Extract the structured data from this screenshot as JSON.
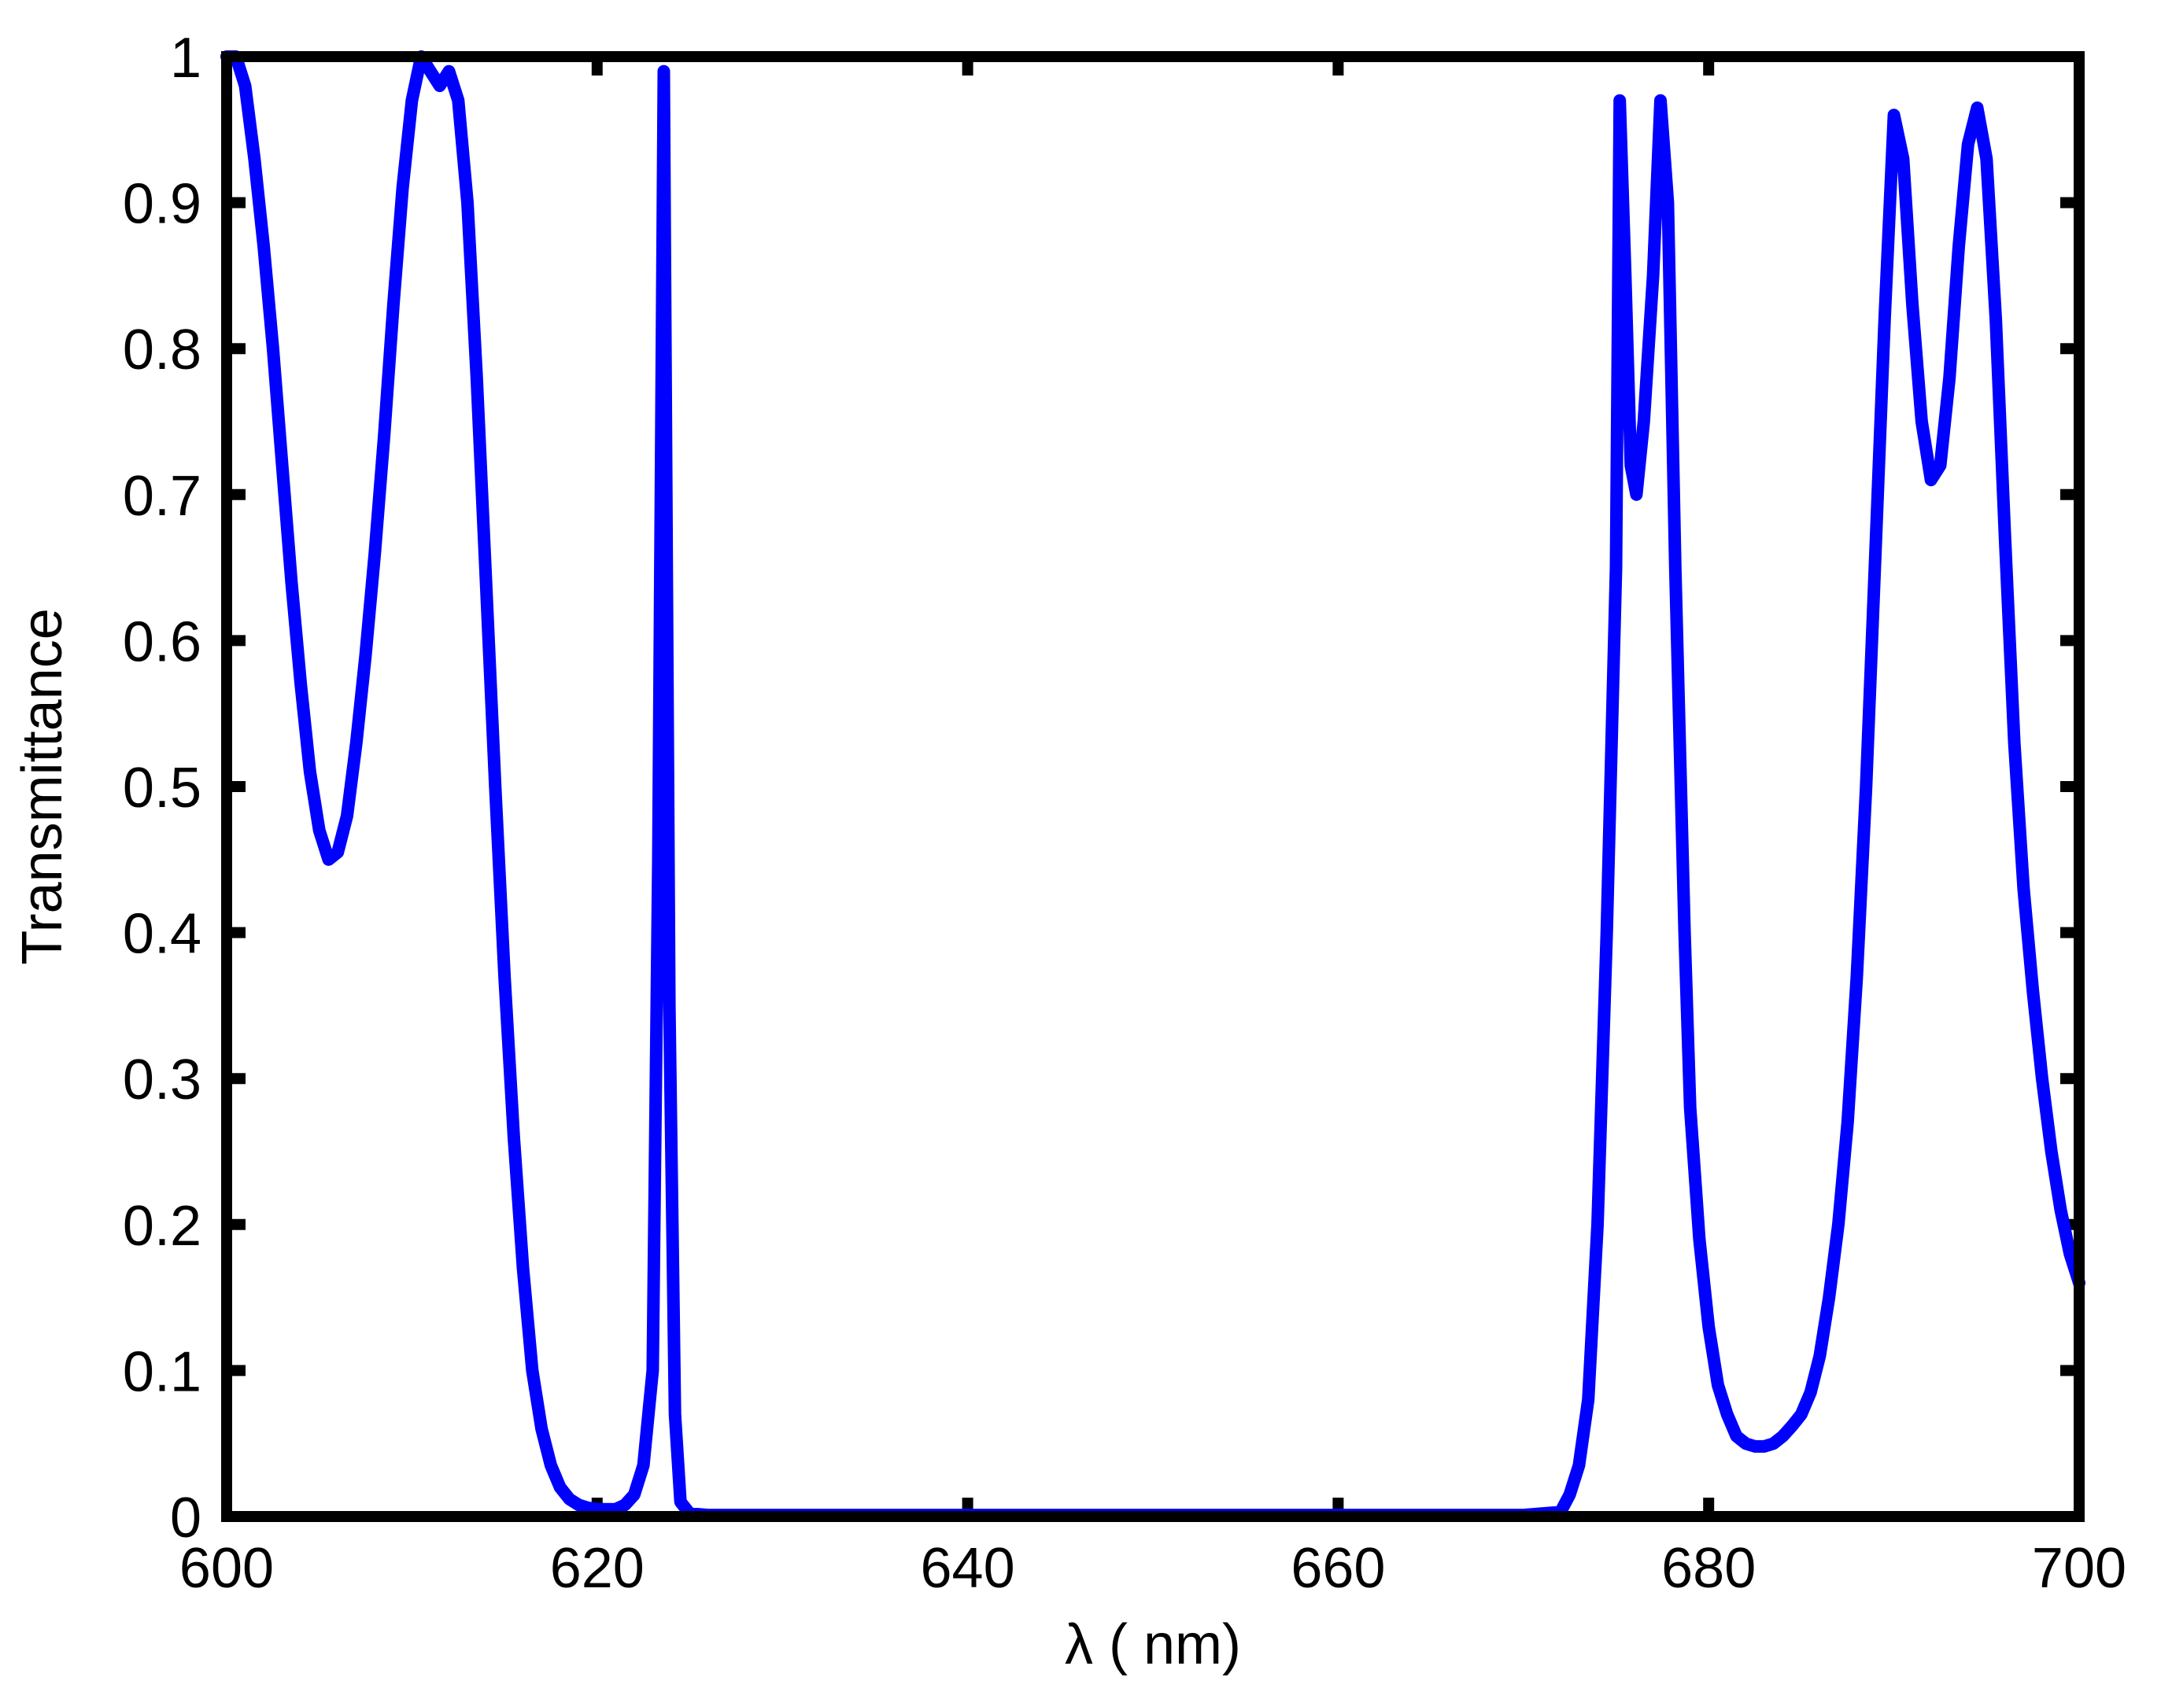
{
  "chart_data": {
    "type": "line",
    "title": "",
    "xlabel": "λ ( nm)",
    "ylabel": "Transmittance",
    "xlim": [
      600,
      700
    ],
    "ylim": [
      0,
      1
    ],
    "x_ticks": [
      600,
      620,
      640,
      660,
      680,
      700
    ],
    "y_ticks": [
      0,
      0.1,
      0.2,
      0.3,
      0.4,
      0.5,
      0.6,
      0.7,
      0.8,
      0.9,
      1
    ],
    "x_tick_labels": [
      "600",
      "620",
      "640",
      "660",
      "680",
      "700"
    ],
    "y_tick_labels": [
      "0",
      "0.1",
      "0.2",
      "0.3",
      "0.4",
      "0.5",
      "0.6",
      "0.7",
      "0.8",
      "0.9",
      "1"
    ],
    "grid": false,
    "legend": "none",
    "series": [
      {
        "color": "#0000ff",
        "x": [
          600,
          600.5,
          601,
          601.5,
          602,
          602.5,
          603,
          603.5,
          604,
          604.5,
          605,
          605.5,
          606,
          606.5,
          607,
          607.5,
          608,
          608.5,
          609,
          609.5,
          610,
          610.5,
          611,
          611.5,
          612,
          612.5,
          613,
          613.5,
          614,
          614.5,
          615,
          615.5,
          616,
          616.5,
          617,
          617.5,
          618,
          618.5,
          619,
          619.5,
          620,
          620.5,
          621,
          621.5,
          622,
          622.5,
          623,
          623.3,
          623.6,
          623.9,
          624.2,
          624.5,
          625,
          626,
          630,
          640,
          650,
          660,
          670,
          672,
          672.5,
          673,
          673.5,
          674,
          674.5,
          675,
          675.2,
          675.5,
          675.8,
          676.1,
          676.5,
          677,
          677.4,
          677.8,
          678.2,
          678.7,
          679,
          679.5,
          680,
          680.5,
          681,
          681.5,
          682,
          682.5,
          683,
          683.5,
          684,
          684.5,
          685,
          685.5,
          686,
          686.5,
          687,
          687.5,
          688,
          688.5,
          689,
          689.5,
          690,
          690.5,
          691,
          691.5,
          692,
          692.5,
          693,
          693.5,
          694,
          694.5,
          695,
          695.5,
          696,
          696.5,
          697,
          697.5,
          698,
          698.5,
          699,
          699.5,
          700
        ],
        "y": [
          1,
          1,
          0.98,
          0.93,
          0.87,
          0.8,
          0.72,
          0.64,
          0.57,
          0.51,
          0.47,
          0.45,
          0.455,
          0.48,
          0.53,
          0.59,
          0.66,
          0.74,
          0.83,
          0.91,
          0.97,
          1,
          0.99,
          0.98,
          0.99,
          0.97,
          0.9,
          0.78,
          0.64,
          0.5,
          0.37,
          0.26,
          0.17,
          0.1,
          0.06,
          0.035,
          0.02,
          0.012,
          0.008,
          0.006,
          0.005,
          0.005,
          0.005,
          0.008,
          0.015,
          0.035,
          0.1,
          0.45,
          0.99,
          0.35,
          0.07,
          0.01,
          0.002,
          0.001,
          0.001,
          0.001,
          0.001,
          0.001,
          0.001,
          0.003,
          0.015,
          0.035,
          0.08,
          0.2,
          0.4,
          0.65,
          0.97,
          0.85,
          0.72,
          0.7,
          0.75,
          0.85,
          0.97,
          0.9,
          0.65,
          0.4,
          0.28,
          0.19,
          0.13,
          0.09,
          0.07,
          0.055,
          0.05,
          0.048,
          0.048,
          0.05,
          0.055,
          0.062,
          0.07,
          0.085,
          0.11,
          0.15,
          0.2,
          0.27,
          0.37,
          0.5,
          0.66,
          0.82,
          0.96,
          0.93,
          0.83,
          0.75,
          0.71,
          0.72,
          0.78,
          0.87,
          0.94,
          0.965,
          0.93,
          0.82,
          0.67,
          0.53,
          0.43,
          0.36,
          0.3,
          0.25,
          0.21,
          0.18,
          0.16
        ]
      }
    ]
  }
}
